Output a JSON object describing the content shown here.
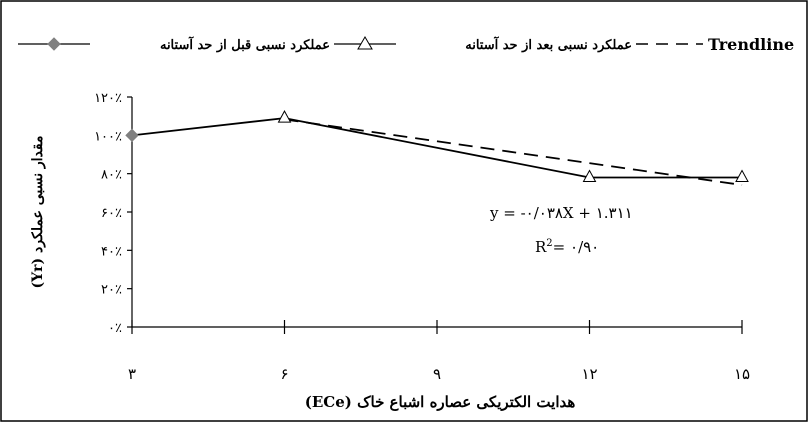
{
  "chart_data": {
    "type": "line",
    "title": "",
    "xlabel": "هدایت الکتریکی عصاره اشباع خاک (ECe)",
    "ylabel": "مقدار نسبی عملکرد (Yr)",
    "x_ticks": [
      "۳",
      "۶",
      "۹",
      "۱۲",
      "۱۵"
    ],
    "y_ticks": [
      "۰٪",
      "۲۰٪",
      "۴۰٪",
      "۶۰٪",
      "۸۰٪",
      "۱۰۰٪",
      "۱۲۰٪"
    ],
    "x_values": [
      3,
      6,
      9,
      12,
      15
    ],
    "xlim": [
      3,
      15
    ],
    "ylim": [
      0,
      1.2
    ],
    "grid": false,
    "legend_position": "top",
    "series": [
      {
        "name": "عملکرد نسبی قبل از حد آستانه",
        "marker": "diamond",
        "color": "#808080",
        "points": [
          [
            3,
            1.0
          ],
          [
            6,
            1.09
          ]
        ]
      },
      {
        "name": "عملکرد نسبی بعد از حد آستانه",
        "marker": "triangle",
        "color": "#000000",
        "points": [
          [
            6,
            1.09
          ],
          [
            12,
            0.78
          ],
          [
            15,
            0.78
          ]
        ]
      },
      {
        "name": "Trendline",
        "style": "dashed",
        "color": "#000000",
        "points": [
          [
            6,
            1.083
          ],
          [
            15,
            0.741
          ]
        ]
      }
    ],
    "annotations": {
      "equation": "y = -۰/۰۳۸X + ۱.۳۱۱",
      "r2_label": "R",
      "r2_sup": "2",
      "r2_value": "= ۰/۹۰"
    }
  }
}
